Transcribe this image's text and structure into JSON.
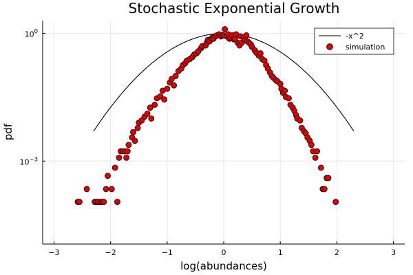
{
  "chart_data": {
    "type": "scatter",
    "title": "Stochastic Exponential Growth",
    "xlabel": "log(abundances)",
    "ylabel": "pdf",
    "xlim": [
      -3.2,
      3.2
    ],
    "ylim_log10": [
      -4.95,
      0.3
    ],
    "y_scale": "log10",
    "x_ticks": [
      -3,
      -2,
      -1,
      0,
      1,
      2,
      3
    ],
    "x_tick_labels": [
      "−3",
      "−2",
      "−1",
      "0",
      "1",
      "2",
      "3"
    ],
    "y_ticks_log10": [
      0,
      -3
    ],
    "y_tick_labels": [
      {
        "base": "10",
        "exp": "0"
      },
      {
        "base": "10",
        "exp": "−3"
      }
    ],
    "grid": true,
    "legend_position": "top-right",
    "colors": {
      "line": "#000000",
      "marker_fill": "#e00000",
      "marker_edge": "#000000"
    },
    "series": [
      {
        "name": "-x^2",
        "kind": "line",
        "function": "exp(-x^2)",
        "x_range": [
          -2.3,
          2.3
        ]
      },
      {
        "name": "simulation",
        "kind": "scatter",
        "points": [
          [
            -2.58,
            0.00011
          ],
          [
            -2.55,
            0.00011
          ],
          [
            -2.42,
            0.00022
          ],
          [
            -2.28,
            0.00011
          ],
          [
            -2.25,
            0.00011
          ],
          [
            -2.22,
            0.00011
          ],
          [
            -2.18,
            0.00011
          ],
          [
            -2.15,
            0.00011
          ],
          [
            -2.12,
            0.00011
          ],
          [
            -2.08,
            0.00022
          ],
          [
            -2.05,
            0.00045
          ],
          [
            -1.98,
            0.00022
          ],
          [
            -1.88,
            0.00011
          ],
          [
            -1.92,
            0.0007
          ],
          [
            -1.85,
            0.0012
          ],
          [
            -1.82,
            0.0017
          ],
          [
            -1.78,
            0.0017
          ],
          [
            -1.75,
            0.0017
          ],
          [
            -1.72,
            0.0012
          ],
          [
            -1.7,
            0.0017
          ],
          [
            -1.68,
            0.0024
          ],
          [
            -1.62,
            0.0036
          ],
          [
            -1.6,
            0.0048
          ],
          [
            -1.57,
            0.003
          ],
          [
            -1.52,
            0.006
          ],
          [
            -1.5,
            0.008
          ],
          [
            -1.45,
            0.009
          ],
          [
            -1.4,
            0.011
          ],
          [
            -1.35,
            0.013
          ],
          [
            -1.3,
            0.018
          ],
          [
            -1.28,
            0.01
          ],
          [
            -1.22,
            0.021
          ],
          [
            -1.18,
            0.03
          ],
          [
            -1.12,
            0.033
          ],
          [
            -1.08,
            0.045
          ],
          [
            -1.05,
            0.028
          ],
          [
            -1.0,
            0.05
          ],
          [
            -0.95,
            0.07
          ],
          [
            -0.92,
            0.085
          ],
          [
            -0.88,
            0.06
          ],
          [
            -0.85,
            0.1
          ],
          [
            -0.8,
            0.13
          ],
          [
            -0.75,
            0.15
          ],
          [
            -0.72,
            0.18
          ],
          [
            -0.68,
            0.2
          ],
          [
            -0.65,
            0.23
          ],
          [
            -0.6,
            0.25
          ],
          [
            -0.55,
            0.28
          ],
          [
            -0.52,
            0.32
          ],
          [
            -0.48,
            0.34
          ],
          [
            -0.45,
            0.38
          ],
          [
            -0.4,
            0.45
          ],
          [
            -0.38,
            0.5
          ],
          [
            -0.32,
            0.52
          ],
          [
            -0.3,
            0.6
          ],
          [
            -0.28,
            0.7
          ],
          [
            -0.25,
            0.65
          ],
          [
            -0.22,
            0.75
          ],
          [
            -0.2,
            0.8
          ],
          [
            -0.18,
            0.75
          ],
          [
            -0.15,
            0.85
          ],
          [
            -0.12,
            0.9
          ],
          [
            -0.08,
            0.95
          ],
          [
            -0.05,
            0.85
          ],
          [
            -0.02,
            0.9
          ],
          [
            0.0,
            0.9
          ],
          [
            0.02,
            1.25
          ],
          [
            0.05,
            0.85
          ],
          [
            0.08,
            0.95
          ],
          [
            0.1,
            0.75
          ],
          [
            0.12,
            0.8
          ],
          [
            0.15,
            0.9
          ],
          [
            0.18,
            0.72
          ],
          [
            0.2,
            0.75
          ],
          [
            0.22,
            0.95
          ],
          [
            0.25,
            0.6
          ],
          [
            0.28,
            0.52
          ],
          [
            0.3,
            0.85
          ],
          [
            0.32,
            0.6
          ],
          [
            0.35,
            0.8
          ],
          [
            0.38,
            0.7
          ],
          [
            0.4,
            0.9
          ],
          [
            0.42,
            0.65
          ],
          [
            0.45,
            0.6
          ],
          [
            0.48,
            0.55
          ],
          [
            0.5,
            0.48
          ],
          [
            0.55,
            0.4
          ],
          [
            0.58,
            0.35
          ],
          [
            0.62,
            0.3
          ],
          [
            0.65,
            0.34
          ],
          [
            0.68,
            0.25
          ],
          [
            0.72,
            0.23
          ],
          [
            0.75,
            0.18
          ],
          [
            0.78,
            0.15
          ],
          [
            0.82,
            0.12
          ],
          [
            0.85,
            0.1
          ],
          [
            0.88,
            0.09
          ],
          [
            0.92,
            0.08
          ],
          [
            0.95,
            0.075
          ],
          [
            1.0,
            0.065
          ],
          [
            1.02,
            0.05
          ],
          [
            1.05,
            0.04
          ],
          [
            1.08,
            0.045
          ],
          [
            1.1,
            0.032
          ],
          [
            1.15,
            0.03
          ],
          [
            1.18,
            0.021
          ],
          [
            1.22,
            0.018
          ],
          [
            1.25,
            0.015
          ],
          [
            1.28,
            0.012
          ],
          [
            1.3,
            0.01
          ],
          [
            1.35,
            0.009
          ],
          [
            1.38,
            0.006
          ],
          [
            1.42,
            0.005
          ],
          [
            1.45,
            0.0045
          ],
          [
            1.48,
            0.0036
          ],
          [
            1.52,
            0.003
          ],
          [
            1.55,
            0.0024
          ],
          [
            1.58,
            0.0017
          ],
          [
            1.62,
            0.0012
          ],
          [
            1.65,
            0.0017
          ],
          [
            1.72,
            0.0007
          ],
          [
            1.75,
            0.00022
          ],
          [
            1.78,
            0.00022
          ],
          [
            1.82,
            0.0004
          ],
          [
            1.85,
            0.0004
          ],
          [
            1.98,
            0.00011
          ]
        ]
      }
    ]
  }
}
